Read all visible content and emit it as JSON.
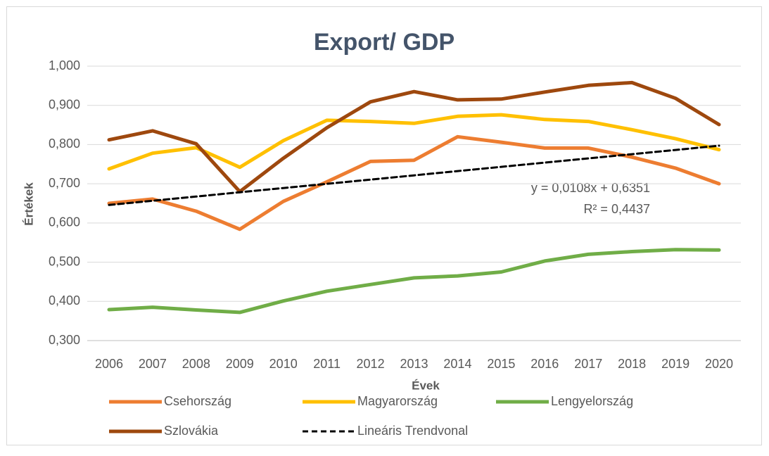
{
  "chart_data": {
    "type": "line",
    "title": "Export/ GDP",
    "x_label": "Évek",
    "y_label": "Értékek",
    "categories": [
      "2006",
      "2007",
      "2008",
      "2009",
      "2010",
      "2011",
      "2012",
      "2013",
      "2014",
      "2015",
      "2016",
      "2017",
      "2018",
      "2019",
      "2020"
    ],
    "series": [
      {
        "name": "Csehország",
        "color": "#ed7d31",
        "values": [
          0.65,
          0.661,
          0.63,
          0.584,
          0.655,
          0.705,
          0.757,
          0.76,
          0.82,
          0.806,
          0.791,
          0.791,
          0.768,
          0.74,
          0.7
        ]
      },
      {
        "name": "Magyarország",
        "color": "#ffc000",
        "values": [
          0.738,
          0.778,
          0.792,
          0.742,
          0.81,
          0.862,
          0.859,
          0.854,
          0.872,
          0.876,
          0.864,
          0.859,
          0.838,
          0.815,
          0.787
        ]
      },
      {
        "name": "Lengyelország",
        "color": "#70ad47",
        "values": [
          0.379,
          0.385,
          0.378,
          0.372,
          0.401,
          0.426,
          0.443,
          0.46,
          0.465,
          0.475,
          0.503,
          0.52,
          0.527,
          0.532,
          0.531
        ]
      },
      {
        "name": "Szlovákia",
        "color": "#9e480e",
        "values": [
          0.812,
          0.835,
          0.802,
          0.68,
          0.765,
          0.843,
          0.909,
          0.935,
          0.914,
          0.916,
          0.934,
          0.951,
          0.958,
          0.918,
          0.851
        ]
      },
      {
        "name": "Lineáris Trendvonal",
        "color": "#000000",
        "dashed": true,
        "values": [
          0.6459,
          0.6567,
          0.6675,
          0.6783,
          0.6891,
          0.6999,
          0.7107,
          0.7215,
          0.7323,
          0.7431,
          0.7539,
          0.7647,
          0.7755,
          0.7863,
          0.7971
        ]
      }
    ],
    "annotations": [
      "y = 0,0108x + 0,6351",
      "R² = 0,4437"
    ],
    "ylim": [
      0.3,
      1.0
    ],
    "yticks": [
      {
        "value": 0.3,
        "label": "0,300"
      },
      {
        "value": 0.4,
        "label": "0,400"
      },
      {
        "value": 0.5,
        "label": "0,500"
      },
      {
        "value": 0.6,
        "label": "0,600"
      },
      {
        "value": 0.7,
        "label": "0,700"
      },
      {
        "value": 0.8,
        "label": "0,800"
      },
      {
        "value": 0.9,
        "label": "0,900"
      },
      {
        "value": 1.0,
        "label": "1,000"
      }
    ],
    "grid": true,
    "legend": "bottom"
  }
}
